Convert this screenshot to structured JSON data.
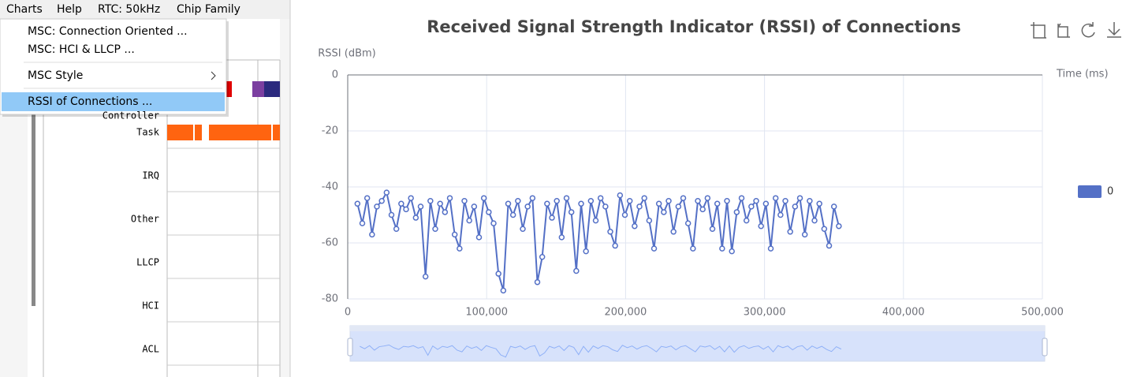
{
  "menubar": [
    "Charts",
    "Help",
    "RTC: 50kHz",
    "Chip Family"
  ],
  "menu": [
    "MSC: Connection Oriented ...",
    "MSC: HCI & LLCP ...",
    "MSC Style",
    "RSSI of Connections ..."
  ],
  "rows": [
    "Controller",
    "Task",
    "IRQ",
    "Other",
    "LLCP",
    "HCI",
    "ACL"
  ],
  "chart_data": {
    "type": "line",
    "title": "Received Signal Strength Indicator (RSSI) of Connections",
    "y_label": "RSSI (dBm)",
    "x_label": "Time (ms)",
    "xlim": [
      0,
      500000
    ],
    "ylim": [
      -80,
      0
    ],
    "xticks": [
      0,
      {
        "value": 100000,
        "label": "100,000"
      },
      {
        "value": 200000,
        "label": "200,000"
      },
      {
        "value": 300000,
        "label": "300,000"
      },
      {
        "value": 400000,
        "label": "400,000"
      },
      {
        "value": 500000,
        "label": "500,000"
      }
    ],
    "yticks": [
      0,
      -20,
      -40,
      -60,
      -80
    ],
    "grid": true,
    "legend": "right",
    "series": [
      {
        "name": "0",
        "color": "#5470c6",
        "x": [
          7000,
          10500,
          14000,
          17500,
          21000,
          24500,
          28000,
          31500,
          35000,
          38500,
          42000,
          45500,
          49000,
          52500,
          56000,
          59500,
          63000,
          66500,
          70000,
          73500,
          77000,
          80500,
          84000,
          87500,
          91000,
          94500,
          98000,
          101500,
          105000,
          108500,
          112000,
          115500,
          119000,
          122500,
          126000,
          129500,
          133000,
          136500,
          140000,
          143500,
          147000,
          150500,
          154000,
          157500,
          161000,
          164500,
          168000,
          171500,
          175000,
          178500,
          182000,
          185500,
          189000,
          192500,
          196000,
          199500,
          203000,
          206500,
          210000,
          213500,
          217000,
          220500,
          224000,
          227500,
          231000,
          234500,
          238000,
          241500,
          245000,
          248500,
          252000,
          255500,
          259000,
          262500,
          266000,
          269500,
          273000,
          276500,
          280000,
          283500,
          287000,
          290500,
          294000,
          297500,
          301000,
          304500,
          308000,
          311500,
          315000,
          318500,
          322000,
          325500,
          329000,
          332500,
          336000,
          339500,
          343000,
          346500,
          350000,
          353500
        ],
        "values": [
          -46,
          -53,
          -44,
          -57,
          -47,
          -45,
          -42,
          -50,
          -55,
          -46,
          -48,
          -44,
          -51,
          -47,
          -72,
          -45,
          -55,
          -46,
          -49,
          -44,
          -57,
          -62,
          -45,
          -52,
          -47,
          -58,
          -44,
          -49,
          -53,
          -71,
          -77,
          -46,
          -50,
          -45,
          -55,
          -47,
          -44,
          -74,
          -65,
          -46,
          -51,
          -45,
          -58,
          -44,
          -49,
          -70,
          -46,
          -63,
          -45,
          -52,
          -44,
          -47,
          -56,
          -61,
          -43,
          -50,
          -45,
          -54,
          -47,
          -44,
          -52,
          -62,
          -46,
          -49,
          -45,
          -56,
          -47,
          -44,
          -53,
          -62,
          -45,
          -48,
          -44,
          -55,
          -46,
          -62,
          -45,
          -63,
          -49,
          -44,
          -52,
          -47,
          -45,
          -54,
          -46,
          -62,
          -44,
          -50,
          -45,
          -56,
          -47,
          -44,
          -57,
          -45,
          -52,
          -46,
          -55,
          -61,
          -47,
          -54
        ]
      }
    ]
  }
}
